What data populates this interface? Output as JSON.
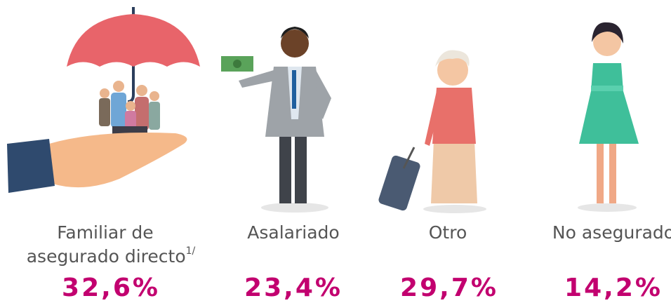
{
  "items": [
    {
      "label_lines": [
        "Familiar de",
        "asegurado directo"
      ],
      "note": "1/",
      "value": "32,6%"
    },
    {
      "label_lines": [
        "Asalariado"
      ],
      "value": "23,4%"
    },
    {
      "label_lines": [
        "Otro"
      ],
      "value": "29,7%"
    },
    {
      "label_lines": [
        "No asegurado"
      ],
      "value": "14,2%"
    }
  ]
}
